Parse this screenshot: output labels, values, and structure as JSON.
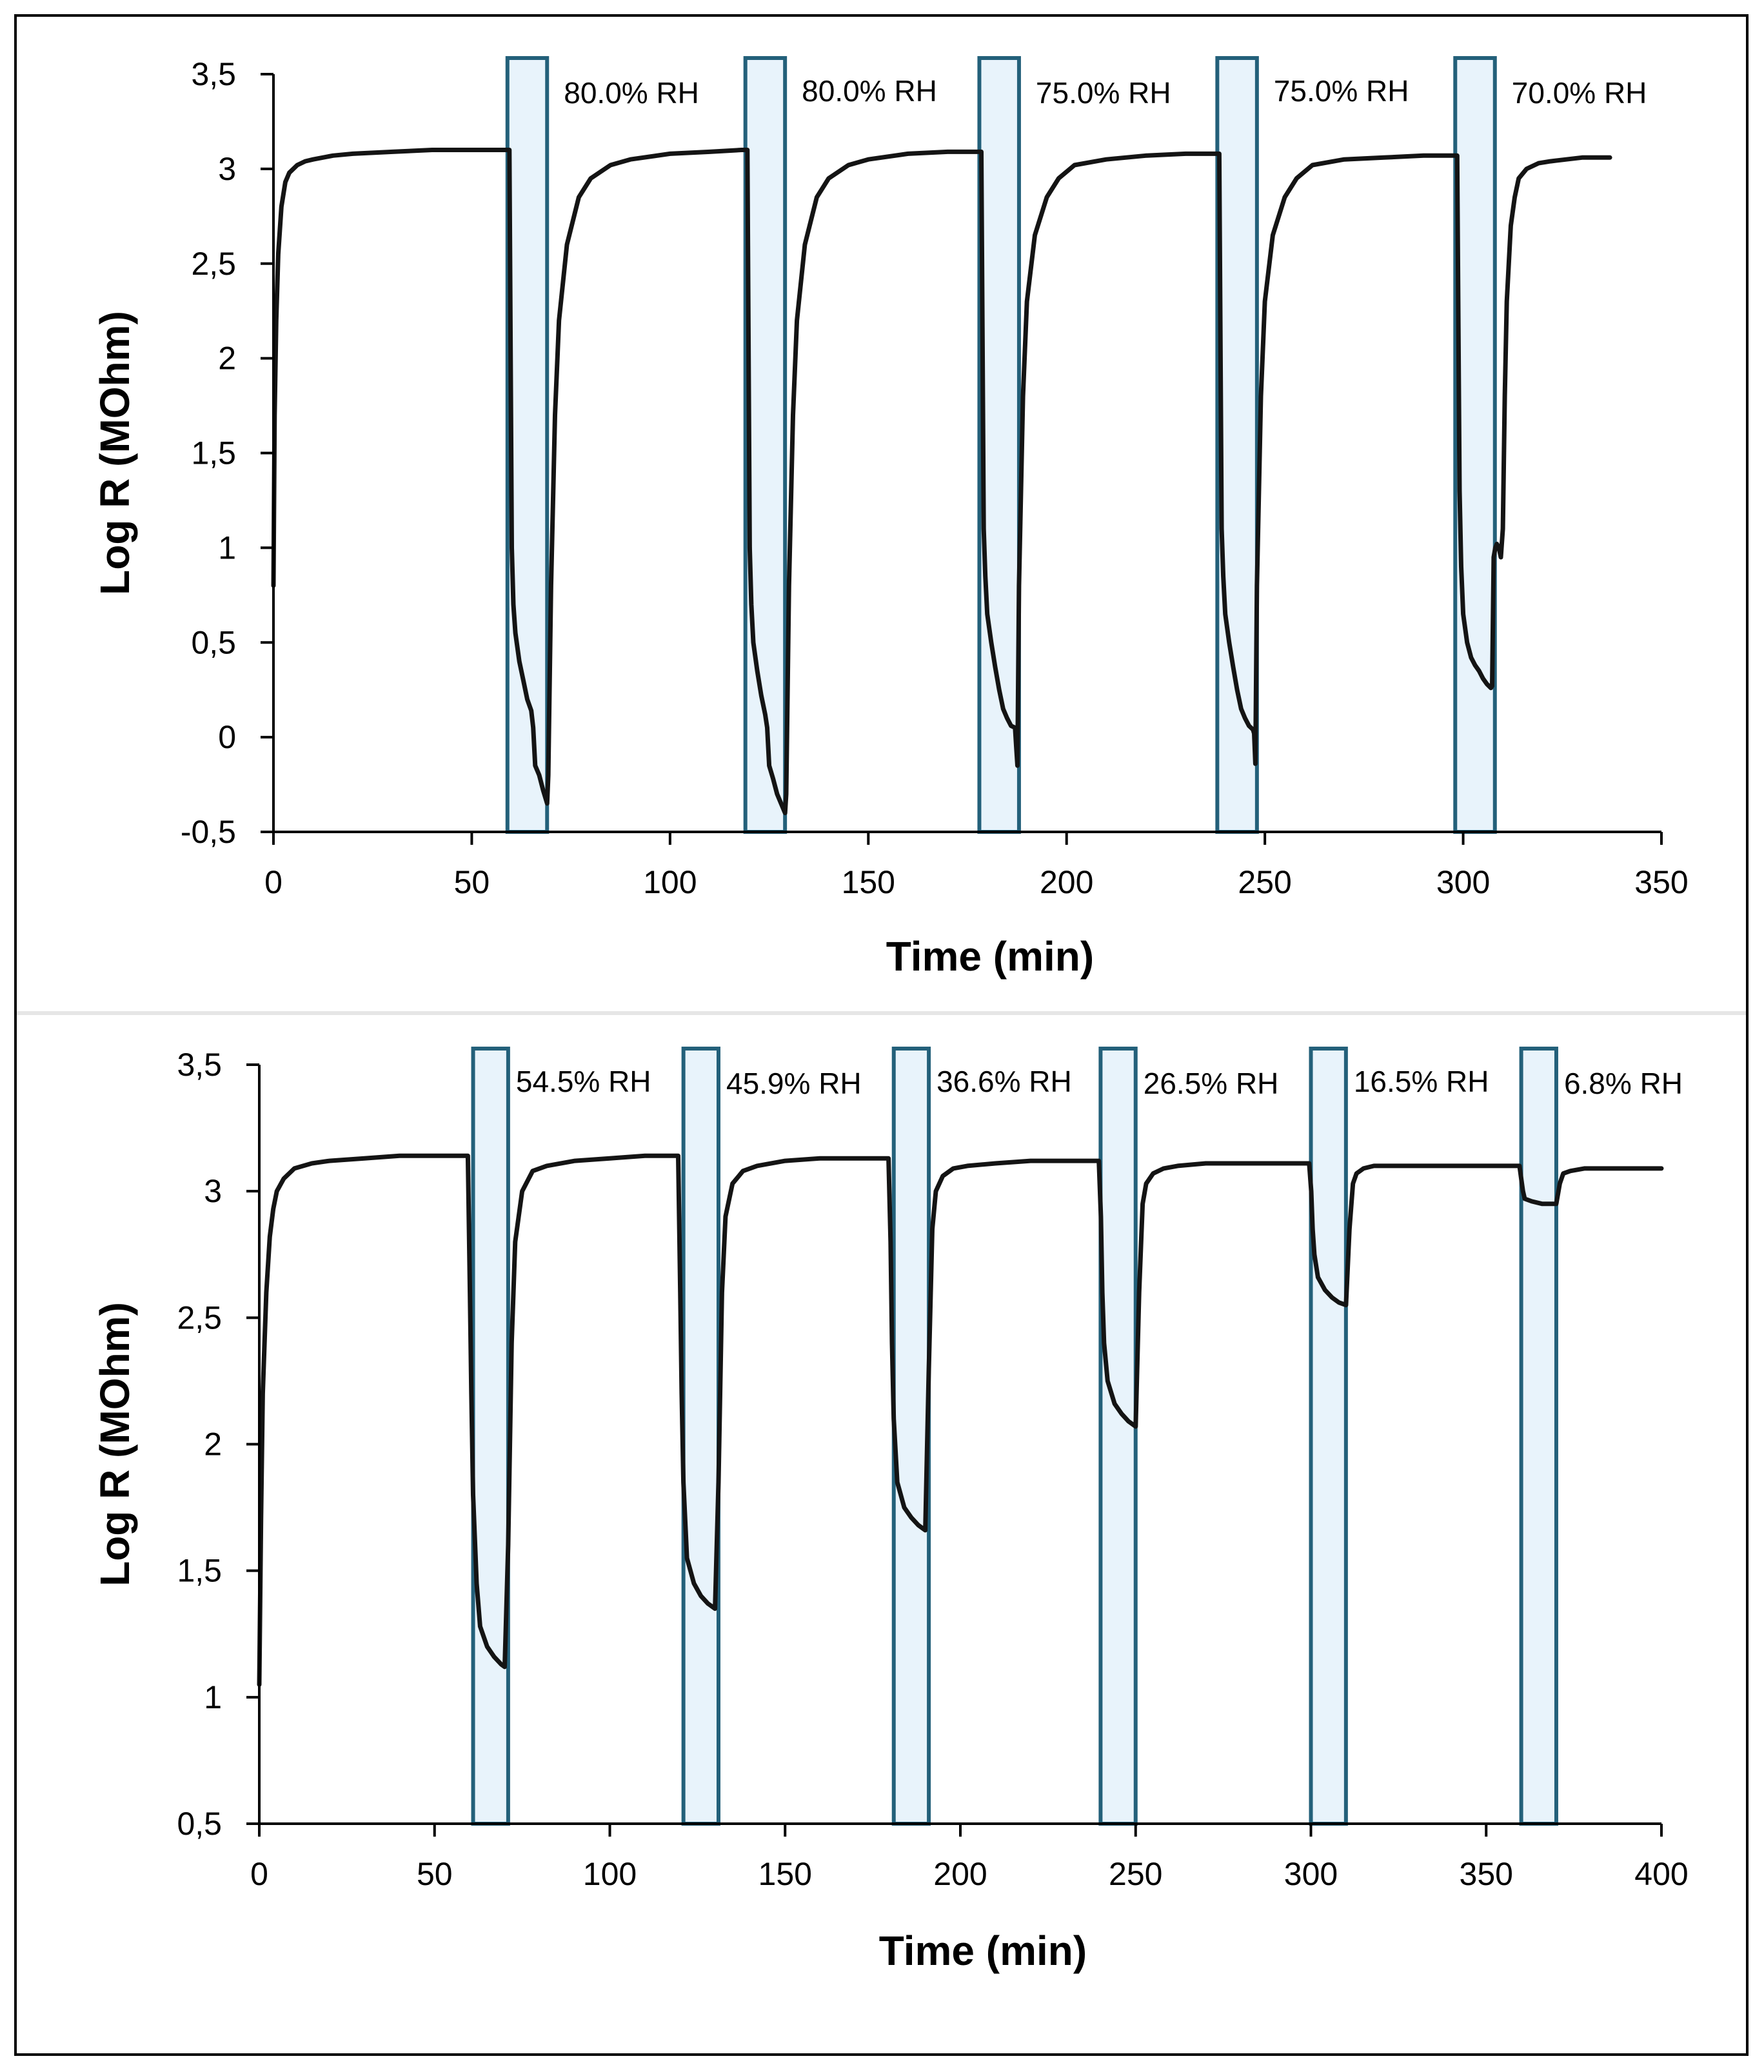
{
  "chart_data": [
    {
      "type": "line",
      "xlabel": "Time (min)",
      "ylabel": "Log R (MOhm)",
      "xlim": [
        0,
        350
      ],
      "ylim": [
        -0.5,
        3.5
      ],
      "x_ticks": [
        0,
        50,
        100,
        150,
        200,
        250,
        300,
        350
      ],
      "y_ticks": [
        -0.5,
        0,
        0.5,
        1,
        1.5,
        2,
        2.5,
        3,
        3.5
      ],
      "x_tick_labels": [
        "0",
        "50",
        "100",
        "150",
        "200",
        "250",
        "300",
        "350"
      ],
      "y_tick_labels": [
        "-0,5",
        "0",
        "0,5",
        "1",
        "1,5",
        "2",
        "2,5",
        "3",
        "3,5"
      ],
      "legend": "none",
      "grid": false,
      "humidity_windows": [
        {
          "label": "80.0% RH",
          "start": 59,
          "end": 69
        },
        {
          "label": "80.0% RH",
          "start": 119,
          "end": 129
        },
        {
          "label": "75.0% RH",
          "start": 178,
          "end": 188
        },
        {
          "label": "75.0% RH",
          "start": 238,
          "end": 248
        },
        {
          "label": "70.0% RH",
          "start": 298,
          "end": 308
        }
      ],
      "series": [
        {
          "name": "Log R",
          "x": [
            0,
            0.3,
            0.7,
            1.2,
            2,
            3,
            4,
            6,
            8,
            10,
            15,
            20,
            30,
            40,
            50,
            59.5,
            60.1,
            60.5,
            61,
            62,
            63,
            64,
            65,
            65.5,
            66,
            67,
            68,
            69,
            69.3,
            70,
            71,
            72,
            74,
            77,
            80,
            85,
            90,
            100,
            110,
            118,
            119.5,
            120.1,
            120.5,
            121,
            122,
            123,
            124,
            124.5,
            125,
            126,
            127,
            128,
            129,
            129.3,
            130,
            131,
            132,
            134,
            137,
            140,
            145,
            150,
            160,
            170,
            178.5,
            179.1,
            179.5,
            180,
            181,
            182,
            183,
            184,
            185,
            186,
            187,
            187.3,
            187.6,
            188,
            189,
            190,
            192,
            195,
            198,
            202,
            210,
            220,
            230,
            238.5,
            239.1,
            239.5,
            240,
            241,
            242,
            243,
            244,
            245,
            246,
            247,
            247.3,
            247.6,
            248,
            249,
            250,
            252,
            255,
            258,
            262,
            270,
            280,
            290,
            298.5,
            299.1,
            299.5,
            300,
            301,
            302,
            303,
            304,
            305,
            306,
            307,
            307.3,
            307.7,
            308.1,
            308.5,
            309,
            309.5,
            310,
            310.5,
            311,
            312,
            313,
            314,
            316,
            319,
            322,
            326,
            330,
            337
          ],
          "values": [
            0.8,
            1.7,
            2.2,
            2.55,
            2.8,
            2.93,
            2.98,
            3.02,
            3.04,
            3.05,
            3.07,
            3.08,
            3.09,
            3.1,
            3.1,
            3.1,
            1.0,
            0.7,
            0.55,
            0.4,
            0.3,
            0.2,
            0.14,
            0.05,
            -0.15,
            -0.2,
            -0.28,
            -0.35,
            -0.2,
            0.8,
            1.7,
            2.2,
            2.6,
            2.85,
            2.95,
            3.02,
            3.05,
            3.08,
            3.09,
            3.1,
            3.1,
            1.0,
            0.7,
            0.5,
            0.35,
            0.22,
            0.12,
            0.05,
            -0.15,
            -0.22,
            -0.3,
            -0.35,
            -0.4,
            -0.3,
            0.8,
            1.7,
            2.2,
            2.6,
            2.85,
            2.95,
            3.02,
            3.05,
            3.08,
            3.09,
            3.09,
            1.1,
            0.85,
            0.65,
            0.5,
            0.37,
            0.25,
            0.15,
            0.1,
            0.06,
            0.05,
            -0.05,
            -0.15,
            0.8,
            1.8,
            2.3,
            2.65,
            2.85,
            2.95,
            3.02,
            3.05,
            3.07,
            3.08,
            3.08,
            1.1,
            0.85,
            0.65,
            0.5,
            0.37,
            0.25,
            0.15,
            0.1,
            0.06,
            0.04,
            0.02,
            -0.14,
            0.8,
            1.8,
            2.3,
            2.65,
            2.85,
            2.95,
            3.02,
            3.05,
            3.06,
            3.07,
            3.07,
            1.3,
            0.9,
            0.65,
            0.5,
            0.42,
            0.38,
            0.35,
            0.31,
            0.28,
            0.26,
            0.27,
            0.95,
            1.0,
            1.02,
            1.0,
            0.95,
            1.1,
            1.8,
            2.3,
            2.7,
            2.85,
            2.95,
            3.0,
            3.03,
            3.04,
            3.05,
            3.06,
            3.06
          ]
        }
      ]
    },
    {
      "type": "line",
      "xlabel": "Time (min)",
      "ylabel": "Log R (MOhm)",
      "xlim": [
        0,
        400
      ],
      "ylim": [
        0.5,
        3.5
      ],
      "x_ticks": [
        0,
        50,
        100,
        150,
        200,
        250,
        300,
        350,
        400
      ],
      "y_ticks": [
        0.5,
        1,
        1.5,
        2,
        2.5,
        3,
        3.5
      ],
      "x_tick_labels": [
        "0",
        "50",
        "100",
        "150",
        "200",
        "250",
        "300",
        "350",
        "400"
      ],
      "y_tick_labels": [
        "0,5",
        "1",
        "1,5",
        "2",
        "2,5",
        "3",
        "3,5"
      ],
      "legend": "none",
      "grid": false,
      "humidity_windows": [
        {
          "label": "54.5% RH",
          "start": 61,
          "end": 71
        },
        {
          "label": "45.9% RH",
          "start": 121,
          "end": 131
        },
        {
          "label": "36.6% RH",
          "start": 181,
          "end": 191
        },
        {
          "label": "26.5% RH",
          "start": 240,
          "end": 250
        },
        {
          "label": "16.5% RH",
          "start": 300,
          "end": 310
        },
        {
          "label": "6.8% RH",
          "start": 360,
          "end": 370
        }
      ],
      "series": [
        {
          "name": "Log R",
          "x": [
            0,
            0.5,
            1,
            2,
            3,
            4,
            5,
            7,
            10,
            15,
            20,
            30,
            40,
            50,
            58,
            59.5,
            60.1,
            60.5,
            61,
            62,
            63,
            65,
            67,
            69,
            70,
            71,
            72,
            73,
            75,
            78,
            82,
            90,
            100,
            110,
            118,
            119.5,
            120.1,
            120.5,
            121,
            122,
            124,
            126,
            128,
            130,
            131,
            132,
            133,
            135,
            138,
            142,
            150,
            160,
            170,
            178,
            179.5,
            180.1,
            180.5,
            181,
            182,
            184,
            186,
            188,
            190,
            191,
            192,
            193,
            195,
            198,
            202,
            210,
            220,
            230,
            238,
            239.5,
            240.1,
            240.5,
            241,
            242,
            244,
            246,
            248,
            250,
            251,
            252,
            253,
            255,
            258,
            262,
            270,
            280,
            290,
            298,
            299.5,
            300.1,
            300.5,
            301,
            302,
            304,
            306,
            308,
            310,
            311,
            312,
            313,
            315,
            318,
            322,
            330,
            340,
            350,
            358,
            359.5,
            360.1,
            360.5,
            361,
            363,
            366,
            369,
            370,
            371,
            372,
            374,
            378,
            385,
            395,
            400
          ],
          "values": [
            1.05,
            1.7,
            2.2,
            2.6,
            2.82,
            2.93,
            3.0,
            3.05,
            3.09,
            3.11,
            3.12,
            3.13,
            3.14,
            3.14,
            3.14,
            3.14,
            2.6,
            2.2,
            1.8,
            1.45,
            1.28,
            1.2,
            1.16,
            1.13,
            1.12,
            1.6,
            2.4,
            2.8,
            3.0,
            3.08,
            3.1,
            3.12,
            3.13,
            3.14,
            3.14,
            3.14,
            2.6,
            2.2,
            1.85,
            1.55,
            1.45,
            1.4,
            1.37,
            1.35,
            1.85,
            2.6,
            2.9,
            3.03,
            3.08,
            3.1,
            3.12,
            3.13,
            3.13,
            3.13,
            3.13,
            2.8,
            2.4,
            2.1,
            1.85,
            1.75,
            1.71,
            1.68,
            1.66,
            2.3,
            2.85,
            3.0,
            3.06,
            3.09,
            3.1,
            3.11,
            3.12,
            3.12,
            3.12,
            3.12,
            2.9,
            2.6,
            2.4,
            2.25,
            2.16,
            2.12,
            2.09,
            2.07,
            2.6,
            2.95,
            3.03,
            3.07,
            3.09,
            3.1,
            3.11,
            3.11,
            3.11,
            3.11,
            3.11,
            3.0,
            2.85,
            2.75,
            2.66,
            2.61,
            2.58,
            2.56,
            2.55,
            2.85,
            3.03,
            3.07,
            3.09,
            3.1,
            3.1,
            3.1,
            3.1,
            3.1,
            3.1,
            3.1,
            3.04,
            3.0,
            2.97,
            2.96,
            2.95,
            2.95,
            2.95,
            3.03,
            3.07,
            3.08,
            3.09,
            3.09,
            3.09,
            3.09
          ]
        }
      ]
    }
  ],
  "colors": {
    "line": "#141414",
    "window_fill": "#e8f3fb",
    "window_stroke": "#23607a",
    "axis": "#000000"
  }
}
